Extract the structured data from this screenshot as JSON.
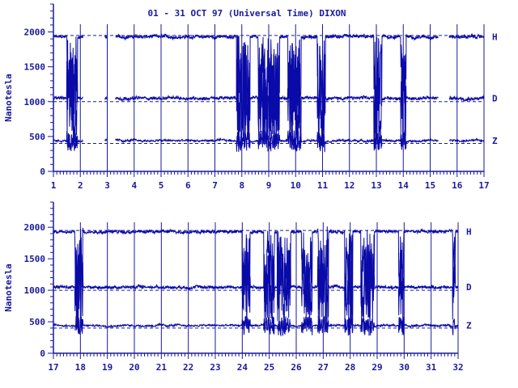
{
  "title": "01 - 31 OCT 97 (Universal Time) DIXON",
  "colors": {
    "ink": "#1a1a9c",
    "trace": "#0a0aa8",
    "background": "#ffffff"
  },
  "chart_data": [
    {
      "type": "line",
      "panel": "top",
      "ylabel": "Nanotesla",
      "ylim": [
        0,
        2400
      ],
      "yticks": [
        0,
        500,
        1000,
        1500,
        2000
      ],
      "xlim": [
        1,
        17
      ],
      "xticks": [
        1,
        2,
        3,
        4,
        5,
        6,
        7,
        8,
        9,
        10,
        11,
        12,
        13,
        14,
        15,
        16,
        17
      ],
      "baselines": {
        "H": 1950,
        "D": 1000,
        "Z": 400
      },
      "series": [
        {
          "name": "H",
          "mean": 1930
        },
        {
          "name": "D",
          "mean": 1050
        },
        {
          "name": "Z",
          "mean": 440
        }
      ],
      "gaps": [
        [
          2.1,
          2.9
        ],
        [
          3.0,
          3.3
        ],
        [
          15.3,
          15.7
        ]
      ],
      "disturbed": [
        [
          1.5,
          1.9
        ],
        [
          7.8,
          8.3
        ],
        [
          8.6,
          9.4
        ],
        [
          9.7,
          10.2
        ],
        [
          10.8,
          11.1
        ],
        [
          12.9,
          13.2
        ],
        [
          13.9,
          14.1
        ]
      ],
      "grid": true
    },
    {
      "type": "line",
      "panel": "bottom",
      "ylabel": "Nanotesla",
      "ylim": [
        0,
        2400
      ],
      "yticks": [
        0,
        500,
        1000,
        1500,
        2000
      ],
      "xlim": [
        17,
        32
      ],
      "xticks": [
        17,
        18,
        19,
        20,
        21,
        22,
        23,
        24,
        25,
        26,
        27,
        28,
        29,
        30,
        31,
        32
      ],
      "baselines": {
        "H": 1950,
        "D": 1000,
        "Z": 400
      },
      "series": [
        {
          "name": "H",
          "mean": 1930
        },
        {
          "name": "D",
          "mean": 1050
        },
        {
          "name": "Z",
          "mean": 440
        }
      ],
      "gaps": [],
      "disturbed": [
        [
          17.8,
          18.1
        ],
        [
          24.0,
          24.3
        ],
        [
          24.8,
          25.2
        ],
        [
          25.3,
          25.8
        ],
        [
          26.2,
          26.6
        ],
        [
          26.8,
          27.2
        ],
        [
          27.8,
          28.1
        ],
        [
          28.4,
          28.9
        ],
        [
          29.8,
          30.0
        ],
        [
          31.8,
          31.9
        ]
      ],
      "grid": true
    }
  ]
}
